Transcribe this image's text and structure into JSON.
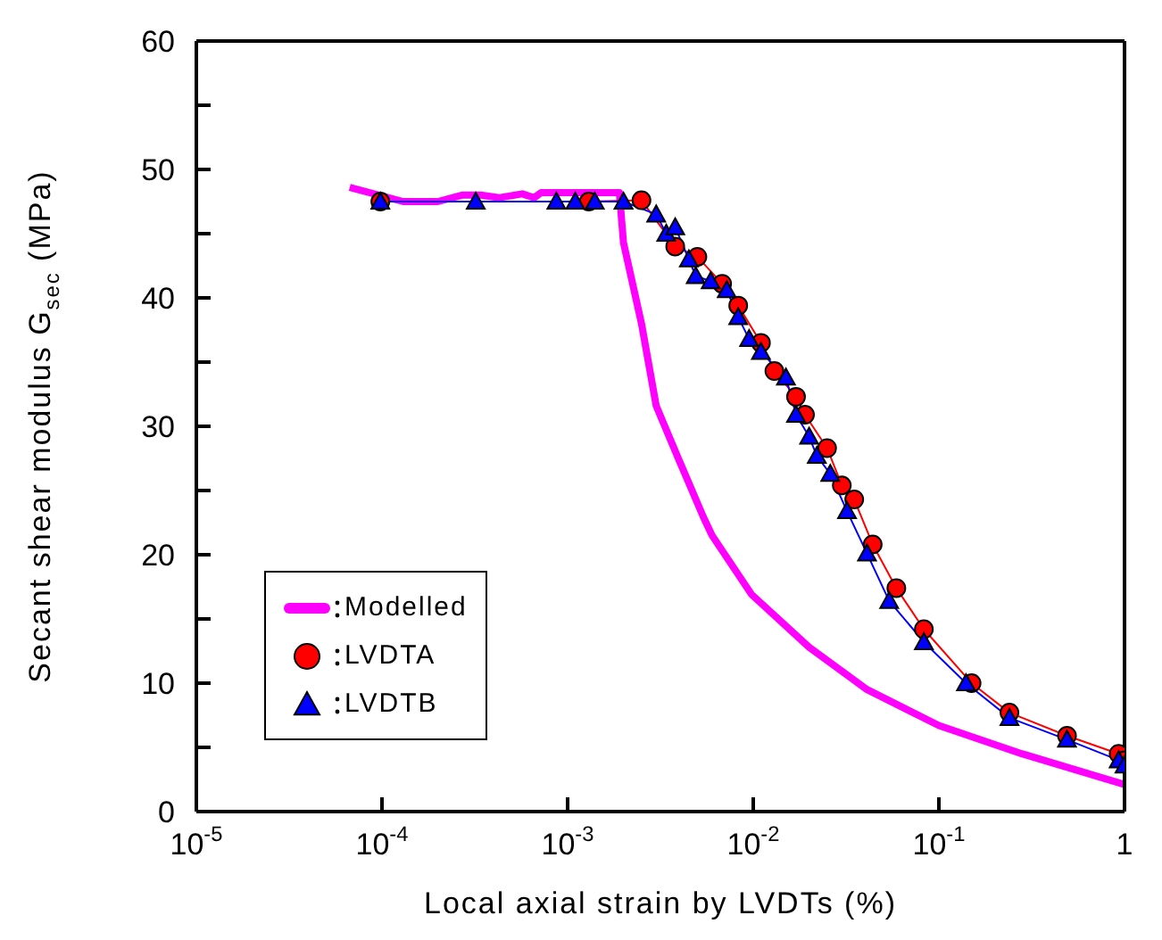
{
  "chart_data": {
    "type": "line",
    "xlabel": "Local axial strain by LVDTs (%)",
    "ylabel": "Secant shear modulus G$_{sec}$ (MPa)",
    "log": "x",
    "legend": "bottom left",
    "xlim": [
      1e-05,
      1
    ],
    "xticks": [
      {
        "value": 1e-05,
        "label": "10$^{-5}$"
      },
      {
        "value": 0.0001,
        "label": "10$^{-4}$"
      },
      {
        "value": 0.001,
        "label": "10$^{-3}$"
      },
      {
        "value": 0.01,
        "label": "10$^{-2}$"
      },
      {
        "value": 0.1,
        "label": "10$^{-1}$"
      },
      1
    ],
    "ylim": [
      0,
      60
    ],
    "yticks": [
      0,
      {
        "value": 5,
        "label": null
      },
      10,
      {
        "value": 15,
        "label": null
      },
      20,
      {
        "value": 25,
        "label": null
      },
      30,
      {
        "value": 35,
        "label": null
      },
      40,
      {
        "value": 45,
        "label": null
      },
      50,
      {
        "value": 55,
        "label": null
      },
      60
    ],
    "series": [
      {
        "name": "Modelled",
        "marker": "none",
        "color": "#ff00ff",
        "x": [
          6.7e-05,
          0.00013,
          0.0002,
          0.00027,
          0.00034,
          0.00043,
          0.00057,
          0.00066,
          0.00072,
          0.0019,
          0.002,
          0.0025,
          0.003,
          0.004,
          0.0054,
          0.006,
          0.0098,
          0.02,
          0.041,
          0.1,
          0.28,
          1
        ],
        "values": [
          48.6,
          47.5,
          47.5,
          48.0,
          48.0,
          47.8,
          48.1,
          47.8,
          48.2,
          48.2,
          44.3,
          38.0,
          31.6,
          27.3,
          22.9,
          21.5,
          16.9,
          12.8,
          9.5,
          6.7,
          4.5,
          2.1
        ]
      },
      {
        "name": "LVDTA",
        "marker": "circle",
        "color": "#ff0000",
        "x": [
          9.8e-05,
          0.0013,
          0.0025,
          0.0038,
          0.005,
          0.0068,
          0.0083,
          0.011,
          0.013,
          0.017,
          0.019,
          0.025,
          0.03,
          0.035,
          0.044,
          0.059,
          0.083,
          0.15,
          0.24,
          0.49,
          0.93,
          1
        ],
        "values": [
          47.5,
          47.5,
          47.6,
          44.0,
          43.2,
          41.1,
          39.4,
          36.5,
          34.3,
          32.3,
          30.9,
          28.3,
          25.4,
          24.3,
          20.8,
          17.4,
          14.2,
          10.0,
          7.7,
          5.9,
          4.5,
          4.0
        ]
      },
      {
        "name": "LVDTB",
        "marker": "triangle",
        "color": "#0000ff",
        "x": [
          9.8e-05,
          0.00032,
          0.00087,
          0.0011,
          0.0014,
          0.002,
          0.003,
          0.0034,
          0.0038,
          0.0045,
          0.0049,
          0.0059,
          0.0072,
          0.0083,
          0.0095,
          0.011,
          0.015,
          0.017,
          0.02,
          0.022,
          0.026,
          0.032,
          0.041,
          0.054,
          0.083,
          0.14,
          0.24,
          0.49,
          0.93,
          1
        ],
        "values": [
          47.5,
          47.5,
          47.5,
          47.5,
          47.5,
          47.5,
          46.5,
          45.0,
          45.5,
          43.0,
          41.7,
          41.3,
          40.6,
          38.5,
          36.8,
          35.8,
          33.8,
          30.9,
          29.2,
          27.7,
          26.3,
          23.4,
          20.1,
          16.4,
          13.2,
          10.0,
          7.3,
          5.6,
          4.0,
          3.6
        ]
      }
    ]
  }
}
